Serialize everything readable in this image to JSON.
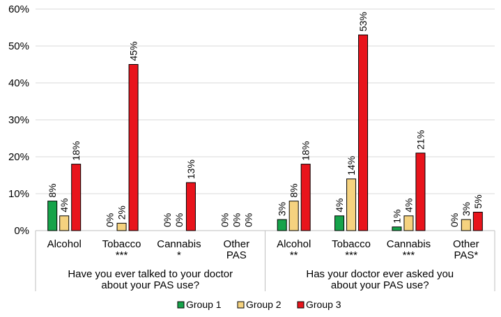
{
  "chart_data": {
    "type": "bar",
    "ylim": [
      0,
      60
    ],
    "y_ticks": [
      "0%",
      "10%",
      "20%",
      "30%",
      "40%",
      "50%",
      "60%"
    ],
    "grid": true,
    "legend_position": "bottom",
    "groups": [
      {
        "label_lines": [
          "Have you ever talked to your doctor",
          "about your PAS use?"
        ],
        "categories": [
          {
            "lines": [
              "Alcohol"
            ]
          },
          {
            "lines": [
              "Tobacco",
              "***"
            ]
          },
          {
            "lines": [
              "Cannabis",
              "*"
            ]
          },
          {
            "lines": [
              "Other",
              "PAS"
            ]
          }
        ]
      },
      {
        "label_lines": [
          "Has your doctor ever asked you",
          "about your PAS use?"
        ],
        "categories": [
          {
            "lines": [
              "Alcohol",
              "**"
            ]
          },
          {
            "lines": [
              "Tobacco",
              "***"
            ]
          },
          {
            "lines": [
              "Cannabis",
              "***"
            ]
          },
          {
            "lines": [
              "Other",
              "PAS*"
            ]
          }
        ]
      }
    ],
    "series": [
      {
        "name": "Group 1",
        "color": "#16A34A",
        "values": [
          8,
          0,
          0,
          0,
          3,
          4,
          1,
          0
        ],
        "labels": [
          "8%",
          "0%",
          "0%",
          "0%",
          "3%",
          "4%",
          "1%",
          "0%"
        ]
      },
      {
        "name": "Group 2",
        "color": "#F5D27F",
        "values": [
          4,
          2,
          0,
          0,
          8,
          14,
          4,
          3
        ],
        "labels": [
          "4%",
          "2%",
          "0%",
          "0%",
          "8%",
          "14%",
          "4%",
          "3%"
        ]
      },
      {
        "name": "Group 3",
        "color": "#E8141C",
        "values": [
          18,
          45,
          13,
          0,
          18,
          53,
          21,
          5
        ],
        "labels": [
          "18%",
          "45%",
          "13%",
          "0%",
          "18%",
          "53%",
          "21%",
          "5%"
        ]
      }
    ]
  }
}
